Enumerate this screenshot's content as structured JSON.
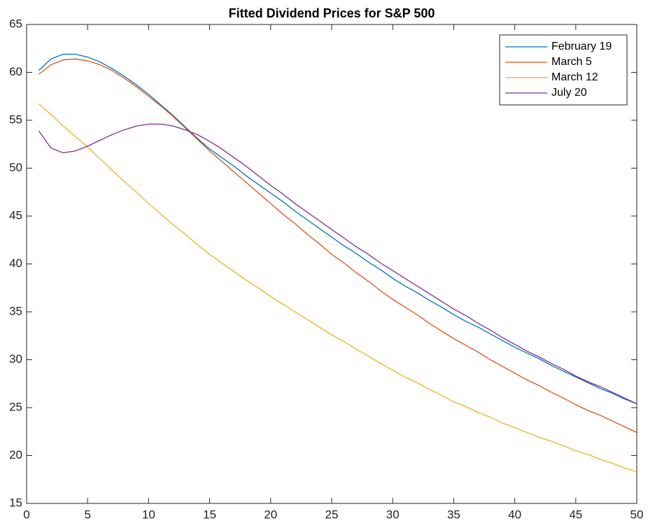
{
  "chart_data": {
    "type": "line",
    "title": "Fitted Dividend Prices for S&P 500",
    "x": [
      1,
      2,
      3,
      4,
      5,
      6,
      7,
      8,
      9,
      10,
      11,
      12,
      13,
      14,
      15,
      16,
      17,
      18,
      19,
      20,
      21,
      22,
      23,
      24,
      25,
      26,
      27,
      28,
      29,
      30,
      31,
      32,
      33,
      34,
      35,
      36,
      37,
      38,
      39,
      40,
      41,
      42,
      43,
      44,
      45,
      46,
      47,
      48,
      49,
      50
    ],
    "series": [
      {
        "name": "February 19",
        "color": "#0072BD",
        "values": [
          60.2,
          61.4,
          61.9,
          61.9,
          61.6,
          61.1,
          60.4,
          59.6,
          58.7,
          57.7,
          56.6,
          55.5,
          54.3,
          53.1,
          52.0,
          51.1,
          50.2,
          49.2,
          48.3,
          47.4,
          46.5,
          45.5,
          44.6,
          43.7,
          42.8,
          41.9,
          41.1,
          40.2,
          39.4,
          38.5,
          37.7,
          37.0,
          36.2,
          35.5,
          34.7,
          34.0,
          33.4,
          32.7,
          32.0,
          31.3,
          30.7,
          30.1,
          29.4,
          28.8,
          28.2,
          27.6,
          27.0,
          26.5,
          25.9,
          25.4
        ]
      },
      {
        "name": "March 5",
        "color": "#D95319",
        "values": [
          59.8,
          60.8,
          61.3,
          61.4,
          61.2,
          60.8,
          60.2,
          59.4,
          58.5,
          57.5,
          56.5,
          55.4,
          54.2,
          53.0,
          51.8,
          50.7,
          49.6,
          48.5,
          47.4,
          46.3,
          45.2,
          44.2,
          43.1,
          42.1,
          41.0,
          40.1,
          39.1,
          38.2,
          37.2,
          36.3,
          35.5,
          34.7,
          33.8,
          33.0,
          32.2,
          31.5,
          30.8,
          30.0,
          29.3,
          28.6,
          27.9,
          27.3,
          26.6,
          26.0,
          25.3,
          24.7,
          24.2,
          23.6,
          23.0,
          22.4
        ]
      },
      {
        "name": "March 12",
        "color": "#EDB120",
        "values": [
          56.7,
          55.6,
          54.4,
          53.3,
          52.2,
          51.0,
          49.8,
          48.6,
          47.5,
          46.3,
          45.2,
          44.1,
          43.1,
          42.0,
          41.0,
          40.1,
          39.2,
          38.3,
          37.5,
          36.6,
          35.8,
          35.0,
          34.2,
          33.4,
          32.6,
          31.9,
          31.1,
          30.4,
          29.6,
          28.9,
          28.2,
          27.6,
          26.9,
          26.3,
          25.6,
          25.1,
          24.5,
          24.0,
          23.4,
          22.9,
          22.4,
          21.9,
          21.5,
          21.0,
          20.5,
          20.1,
          19.6,
          19.2,
          18.7,
          18.3
        ]
      },
      {
        "name": "July 20",
        "color": "#7E2F8E",
        "values": [
          53.9,
          52.1,
          51.6,
          51.8,
          52.3,
          52.9,
          53.5,
          54.0,
          54.4,
          54.6,
          54.6,
          54.4,
          54.0,
          53.5,
          52.8,
          52.0,
          51.1,
          50.2,
          49.2,
          48.2,
          47.3,
          46.3,
          45.4,
          44.5,
          43.6,
          42.7,
          41.8,
          41.0,
          40.1,
          39.3,
          38.5,
          37.7,
          36.9,
          36.1,
          35.3,
          34.6,
          33.8,
          33.1,
          32.3,
          31.6,
          30.9,
          30.3,
          29.6,
          29.0,
          28.3,
          27.7,
          27.2,
          26.6,
          26.0,
          25.4
        ]
      }
    ],
    "xlim": [
      0,
      50
    ],
    "xticks": [
      0,
      5,
      10,
      15,
      20,
      25,
      30,
      35,
      40,
      45,
      50
    ],
    "ylim": [
      15,
      65
    ],
    "yticks": [
      15,
      20,
      25,
      30,
      35,
      40,
      45,
      50,
      55,
      60,
      65
    ],
    "grid": false,
    "legend": "top-right"
  }
}
